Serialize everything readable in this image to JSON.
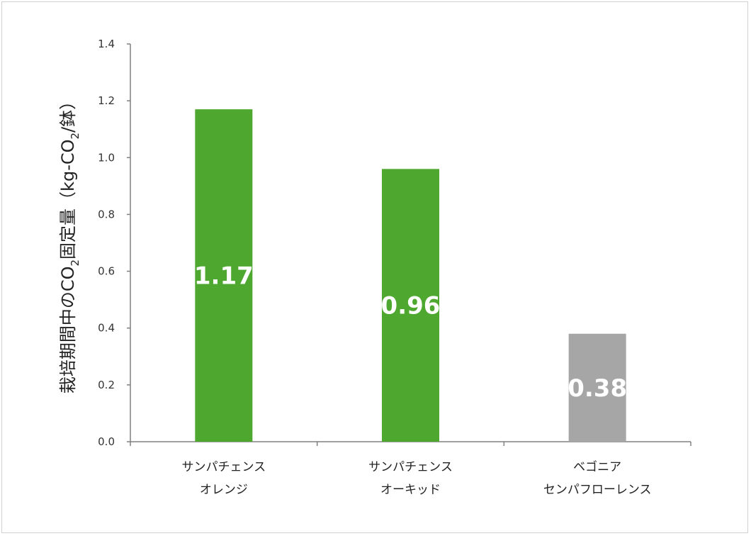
{
  "chart_data": {
    "type": "bar",
    "categories": [
      [
        "サンパチェンス",
        "オレンジ"
      ],
      [
        "サンパチェンス",
        "オーキッド"
      ],
      [
        "ベゴニア",
        "センパフローレンス"
      ]
    ],
    "values": [
      1.17,
      0.96,
      0.38
    ],
    "data_labels": [
      "1.17",
      "0.96",
      "0.38"
    ],
    "bar_colors": [
      "#4ea72e",
      "#4ea72e",
      "#a6a6a6"
    ],
    "ylabel": {
      "main": "栽培期間中のCO",
      "sub1": "2",
      "mid": "固定量（kg-CO",
      "sub2": "2",
      "end": "/鉢）"
    },
    "xlabel": "",
    "ylim": [
      0,
      1.4
    ],
    "yticks": [
      "0.0",
      "0.2",
      "0.4",
      "0.6",
      "0.8",
      "1.0",
      "1.2",
      "1.4"
    ],
    "grid": false,
    "legend": "none"
  }
}
